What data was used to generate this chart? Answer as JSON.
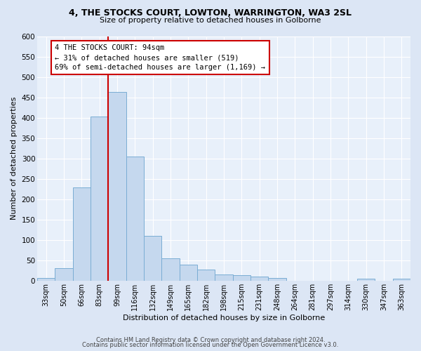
{
  "title1": "4, THE STOCKS COURT, LOWTON, WARRINGTON, WA3 2SL",
  "title2": "Size of property relative to detached houses in Golborne",
  "xlabel": "Distribution of detached houses by size in Golborne",
  "ylabel": "Number of detached properties",
  "bar_labels": [
    "33sqm",
    "50sqm",
    "66sqm",
    "83sqm",
    "99sqm",
    "116sqm",
    "132sqm",
    "149sqm",
    "165sqm",
    "182sqm",
    "198sqm",
    "215sqm",
    "231sqm",
    "248sqm",
    "264sqm",
    "281sqm",
    "297sqm",
    "314sqm",
    "330sqm",
    "347sqm",
    "363sqm"
  ],
  "bar_values": [
    7,
    30,
    228,
    403,
    463,
    305,
    110,
    54,
    40,
    27,
    15,
    13,
    10,
    7,
    0,
    0,
    0,
    0,
    5,
    0,
    5
  ],
  "bar_color": "#c5d8ee",
  "bar_edgecolor": "#7aadd4",
  "vline_color": "#cc0000",
  "vline_pos": 3.5,
  "annotation_text": "4 THE STOCKS COURT: 94sqm\n← 31% of detached houses are smaller (519)\n69% of semi-detached houses are larger (1,169) →",
  "annotation_box_color": "#cc0000",
  "footer1": "Contains HM Land Registry data © Crown copyright and database right 2024.",
  "footer2": "Contains public sector information licensed under the Open Government Licence v3.0.",
  "ylim": [
    0,
    600
  ],
  "yticks": [
    0,
    50,
    100,
    150,
    200,
    250,
    300,
    350,
    400,
    450,
    500,
    550,
    600
  ],
  "bg_color": "#dce6f5",
  "plot_bg": "#e8f0fa"
}
